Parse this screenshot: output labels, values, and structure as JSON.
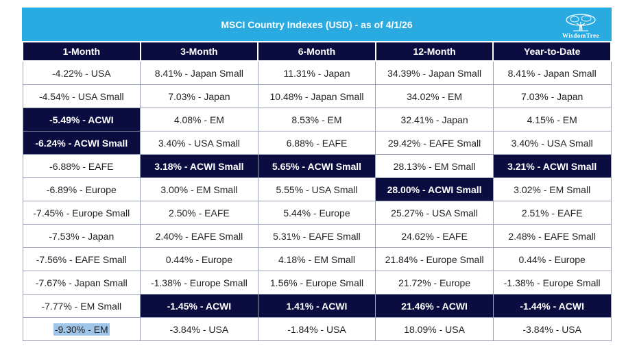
{
  "title": "MSCI Country Indexes (USD) - as of 4/1/26",
  "logo": {
    "text": "WisdomTree",
    "icon": "tree-icon"
  },
  "colors": {
    "title_bar": "#29abe2",
    "header": "#0b0c3f",
    "highlight": "#0b0c3f",
    "selection": "#9fc5e8"
  },
  "columns": [
    "1-Month",
    "3-Month",
    "6-Month",
    "12-Month",
    "Year-to-Date"
  ],
  "rows": [
    [
      "-4.22% - USA",
      "8.41% - Japan Small",
      "11.31% - Japan",
      "34.39% - Japan Small",
      "8.41% - Japan Small"
    ],
    [
      "-4.54% - USA Small",
      "7.03% - Japan",
      "10.48% - Japan Small",
      "34.02% - EM",
      "7.03% - Japan"
    ],
    [
      "-5.49% - ACWI",
      "4.08% - EM",
      "8.53% - EM",
      "32.41% - Japan",
      "4.15% - EM"
    ],
    [
      "-6.24% - ACWI Small",
      "3.40% - USA Small",
      "6.88% - EAFE",
      "29.42% - EAFE Small",
      "3.40% - USA Small"
    ],
    [
      "-6.88% - EAFE",
      "3.18% - ACWI Small",
      "5.65% - ACWI Small",
      "28.13% - EM Small",
      "3.21% - ACWI Small"
    ],
    [
      "-6.89% - Europe",
      "3.00% - EM Small",
      "5.55% - USA Small",
      "28.00% - ACWI Small",
      "3.02% - EM Small"
    ],
    [
      "-7.45% - Europe Small",
      "2.50% - EAFE",
      "5.44% - Europe",
      "25.27% - USA Small",
      "2.51% - EAFE"
    ],
    [
      "-7.53% - Japan",
      "2.40% - EAFE Small",
      "5.31% - EAFE Small",
      "24.62% - EAFE",
      "2.48% - EAFE Small"
    ],
    [
      "-7.56% - EAFE Small",
      "0.44% - Europe",
      "4.18% - EM Small",
      "21.84% - Europe Small",
      "0.44% - Europe"
    ],
    [
      "-7.67% - Japan Small",
      "-1.38% - Europe Small",
      "1.56% - Europe Small",
      "21.72% - Europe",
      "-1.38% - Europe Small"
    ],
    [
      "-7.77% - EM Small",
      "-1.45% - ACWI",
      "1.41% - ACWI",
      "21.46% - ACWI",
      "-1.44% - ACWI"
    ],
    [
      "-9.30% - EM",
      "-3.84% - USA",
      "-1.84% - USA",
      "18.09% - USA",
      "-3.84% - USA"
    ]
  ],
  "highlighted": [
    [
      2,
      0
    ],
    [
      3,
      0
    ],
    [
      4,
      1
    ],
    [
      4,
      2
    ],
    [
      4,
      4
    ],
    [
      5,
      3
    ],
    [
      10,
      1
    ],
    [
      10,
      2
    ],
    [
      10,
      3
    ],
    [
      10,
      4
    ]
  ],
  "text_selection": [
    11,
    0
  ]
}
